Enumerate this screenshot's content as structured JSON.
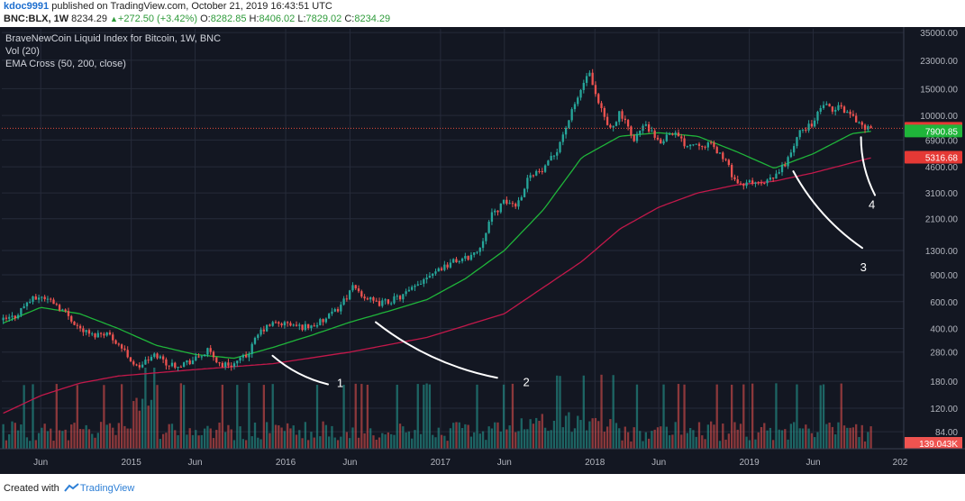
{
  "header": {
    "author": "kdoc9991",
    "published": "published on TradingView.com, October 21, 2019 16:43:51 UTC",
    "symbol": "BNC:BLX, 1W",
    "last": "8234.29",
    "change": "+272.50 (+3.42%)",
    "open_label": "O:",
    "open": "8282.85",
    "high_label": "H:",
    "high": "8406.02",
    "low_label": "L:",
    "low": "7829.02",
    "close_label": "C:",
    "close": "8234.29"
  },
  "legend": {
    "line1": "BraveNewCoin Liquid Index for Bitcoin, 1W, BNC",
    "line2": "Vol (20)",
    "line3": "EMA Cross (50, 200, close)"
  },
  "footer": {
    "created_with": "Created with",
    "brand": "TradingView"
  },
  "colors": {
    "background": "#131722",
    "grid": "#262b3a",
    "up": "#26a69a",
    "down": "#ef5350",
    "ema50": "#1fb53a",
    "ema200": "#c2184a",
    "price_line": "#e74c3c",
    "axis_text": "#b2b5be",
    "annotation": "#ffffff"
  },
  "chart_data": {
    "type": "candlestick",
    "scale": "log",
    "y_ticks": [
      "35000.00",
      "23000.00",
      "15000.00",
      "10000.00",
      "6900.00",
      "4600.00",
      "3100.00",
      "2100.00",
      "1300.00",
      "900.00",
      "600.00",
      "400.00",
      "280.00",
      "180.00",
      "120.00",
      "84.00"
    ],
    "x_ticks": [
      {
        "label": "Jun",
        "date": "2014-06-01"
      },
      {
        "label": "2015",
        "date": "2015-01-01"
      },
      {
        "label": "Jun",
        "date": "2015-06-01"
      },
      {
        "label": "2016",
        "date": "2016-01-01"
      },
      {
        "label": "Jun",
        "date": "2016-06-01"
      },
      {
        "label": "2017",
        "date": "2017-01-01"
      },
      {
        "label": "Jun",
        "date": "2017-06-01"
      },
      {
        "label": "2018",
        "date": "2018-01-01"
      },
      {
        "label": "Jun",
        "date": "2018-06-01"
      },
      {
        "label": "2019",
        "date": "2019-01-01"
      },
      {
        "label": "Jun",
        "date": "2019-06-01"
      },
      {
        "label": "202",
        "date": "2020-01-01"
      }
    ],
    "x_range": [
      "2014-03-01",
      "2020-01-01"
    ],
    "y_range": [
      65,
      37000
    ],
    "price_keypoints": [
      [
        "2014-03-01",
        450
      ],
      [
        "2014-04-01",
        480
      ],
      [
        "2014-05-01",
        600
      ],
      [
        "2014-06-01",
        650
      ],
      [
        "2014-07-01",
        600
      ],
      [
        "2014-08-01",
        500
      ],
      [
        "2014-09-01",
        400
      ],
      [
        "2014-10-01",
        360
      ],
      [
        "2014-11-01",
        380
      ],
      [
        "2014-12-01",
        320
      ],
      [
        "2015-01-15",
        220
      ],
      [
        "2015-02-01",
        240
      ],
      [
        "2015-03-01",
        270
      ],
      [
        "2015-04-01",
        230
      ],
      [
        "2015-05-01",
        235
      ],
      [
        "2015-06-01",
        250
      ],
      [
        "2015-07-01",
        285
      ],
      [
        "2015-08-01",
        230
      ],
      [
        "2015-09-01",
        235
      ],
      [
        "2015-10-01",
        265
      ],
      [
        "2015-11-01",
        380
      ],
      [
        "2015-12-01",
        430
      ],
      [
        "2016-01-01",
        430
      ],
      [
        "2016-02-01",
        410
      ],
      [
        "2016-03-01",
        415
      ],
      [
        "2016-04-01",
        450
      ],
      [
        "2016-05-01",
        530
      ],
      [
        "2016-06-10",
        750
      ],
      [
        "2016-07-01",
        660
      ],
      [
        "2016-08-01",
        580
      ],
      [
        "2016-09-01",
        605
      ],
      [
        "2016-10-01",
        650
      ],
      [
        "2016-11-01",
        740
      ],
      [
        "2016-12-01",
        900
      ],
      [
        "2017-01-01",
        1000
      ],
      [
        "2017-02-01",
        1100
      ],
      [
        "2017-03-01",
        1150
      ],
      [
        "2017-04-01",
        1300
      ],
      [
        "2017-05-01",
        2200
      ],
      [
        "2017-06-01",
        2700
      ],
      [
        "2017-07-01",
        2600
      ],
      [
        "2017-08-01",
        4200
      ],
      [
        "2017-09-01",
        4300
      ],
      [
        "2017-10-01",
        5800
      ],
      [
        "2017-11-01",
        9500
      ],
      [
        "2017-12-17",
        19500
      ],
      [
        "2018-01-01",
        13500
      ],
      [
        "2018-02-05",
        8000
      ],
      [
        "2018-03-01",
        10500
      ],
      [
        "2018-04-01",
        7000
      ],
      [
        "2018-05-01",
        8700
      ],
      [
        "2018-06-01",
        6500
      ],
      [
        "2018-07-01",
        8000
      ],
      [
        "2018-08-01",
        6500
      ],
      [
        "2018-09-01",
        6600
      ],
      [
        "2018-10-01",
        6400
      ],
      [
        "2018-11-01",
        5300
      ],
      [
        "2018-11-25",
        3900
      ],
      [
        "2018-12-15",
        3300
      ],
      [
        "2019-01-01",
        3700
      ],
      [
        "2019-02-01",
        3500
      ],
      [
        "2019-03-01",
        3900
      ],
      [
        "2019-04-01",
        5100
      ],
      [
        "2019-05-01",
        7800
      ],
      [
        "2019-06-01",
        9000
      ],
      [
        "2019-06-26",
        12000
      ],
      [
        "2019-07-15",
        10500
      ],
      [
        "2019-08-01",
        11500
      ],
      [
        "2019-09-01",
        10000
      ],
      [
        "2019-09-25",
        8500
      ],
      [
        "2019-10-21",
        8234.29
      ]
    ],
    "ema50_keypoints": [
      [
        "2014-03-01",
        430
      ],
      [
        "2014-06-01",
        550
      ],
      [
        "2014-09-01",
        500
      ],
      [
        "2014-12-01",
        400
      ],
      [
        "2015-03-01",
        310
      ],
      [
        "2015-06-01",
        270
      ],
      [
        "2015-09-01",
        255
      ],
      [
        "2015-12-01",
        300
      ],
      [
        "2016-03-01",
        360
      ],
      [
        "2016-06-01",
        440
      ],
      [
        "2016-09-01",
        520
      ],
      [
        "2016-12-01",
        620
      ],
      [
        "2017-03-01",
        850
      ],
      [
        "2017-06-01",
        1300
      ],
      [
        "2017-09-01",
        2400
      ],
      [
        "2017-12-01",
        5300
      ],
      [
        "2018-03-01",
        7300
      ],
      [
        "2018-06-01",
        7700
      ],
      [
        "2018-09-01",
        7300
      ],
      [
        "2018-12-01",
        5800
      ],
      [
        "2019-03-01",
        4500
      ],
      [
        "2019-06-01",
        5600
      ],
      [
        "2019-09-01",
        7600
      ],
      [
        "2019-10-21",
        7900.85
      ]
    ],
    "ema200_keypoints": [
      [
        "2014-03-01",
        110
      ],
      [
        "2014-06-01",
        145
      ],
      [
        "2014-09-01",
        175
      ],
      [
        "2014-12-01",
        195
      ],
      [
        "2015-06-01",
        215
      ],
      [
        "2015-12-01",
        235
      ],
      [
        "2016-06-01",
        280
      ],
      [
        "2016-12-01",
        350
      ],
      [
        "2017-06-01",
        500
      ],
      [
        "2017-12-01",
        1100
      ],
      [
        "2018-03-01",
        1800
      ],
      [
        "2018-06-01",
        2500
      ],
      [
        "2018-09-01",
        3100
      ],
      [
        "2018-12-01",
        3500
      ],
      [
        "2019-03-01",
        3700
      ],
      [
        "2019-06-01",
        4200
      ],
      [
        "2019-10-21",
        5316.68
      ]
    ],
    "price_labels": [
      {
        "label": "8234.29",
        "value": 8234.29,
        "color": "#e53935"
      },
      {
        "label": "7900.85",
        "value": 7900.85,
        "color": "#1fb53a"
      },
      {
        "label": "5316.68",
        "value": 5316.68,
        "color": "#e53935"
      }
    ],
    "volume_label": "139.043K",
    "current_price": 8234.29,
    "annotations": [
      {
        "text": "1",
        "x": "2016-05-01",
        "y": 165,
        "line": [
          [
            "2015-12-01",
            265
          ],
          [
            "2016-04-10",
            172
          ]
        ]
      },
      {
        "text": "2",
        "x": "2017-07-15",
        "y": 168,
        "line": [
          [
            "2016-08-01",
            440
          ],
          [
            "2017-05-15",
            190
          ]
        ]
      },
      {
        "text": "3",
        "x": "2019-09-20",
        "y": 950,
        "line": [
          [
            "2019-04-15",
            4300
          ],
          [
            "2019-09-25",
            1350
          ]
        ]
      },
      {
        "text": "4",
        "x": "2019-10-10",
        "y": 2450,
        "line": [
          [
            "2019-09-22",
            7200
          ],
          [
            "2019-10-25",
            3000
          ]
        ]
      }
    ]
  }
}
